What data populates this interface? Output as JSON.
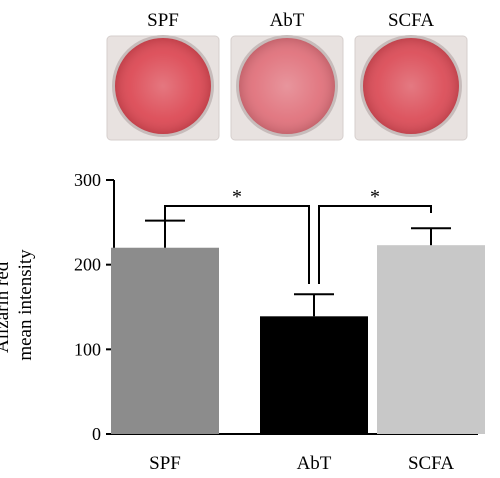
{
  "wells": {
    "labels": [
      "SPF",
      "AbT",
      "SCFA"
    ],
    "dish_colors": [
      "#dc4a55",
      "#e0727c",
      "#db4d58"
    ],
    "plate_color": "#e8e2e0"
  },
  "chart_data": {
    "type": "bar",
    "categories": [
      "SPF",
      "AbT",
      "SCFA"
    ],
    "values": [
      220,
      139,
      223
    ],
    "errors": [
      32,
      26,
      20
    ],
    "colors": [
      "#8c8c8c",
      "#000000",
      "#c8c8c8"
    ],
    "ylabel_lines": [
      "Alizarin red",
      "mean intensity"
    ],
    "ylim": [
      0,
      300
    ],
    "yticks": [
      0,
      100,
      200,
      300
    ],
    "significance": [
      {
        "from": 0,
        "to": 1,
        "label": "*"
      },
      {
        "from": 1,
        "to": 2,
        "label": "*"
      }
    ],
    "grid": false,
    "legend": "none"
  }
}
